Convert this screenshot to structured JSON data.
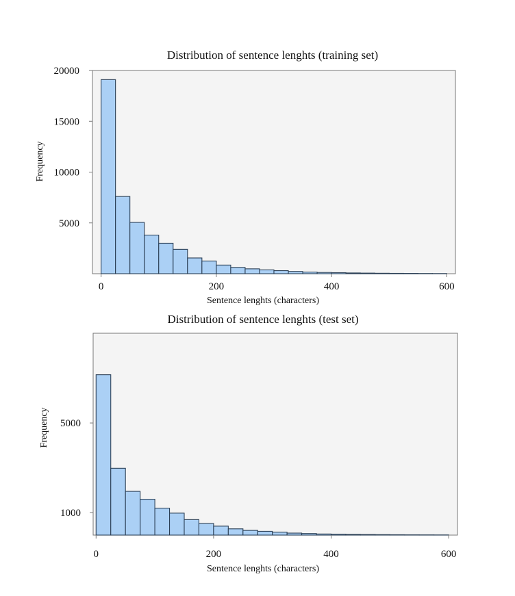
{
  "chart_data": [
    {
      "type": "bar",
      "title": "Distribution of sentence lenghts (training set)",
      "xlabel": "Sentence lenghts (characters)",
      "ylabel": "Frequency",
      "bin_width": 25,
      "xlim": [
        -15,
        615
      ],
      "ylim": [
        0,
        20000
      ],
      "x_ticks": [
        "0",
        "200",
        "400",
        "600"
      ],
      "y_ticks": [
        "5000",
        "10000",
        "15000",
        "20000"
      ],
      "bin_starts": [
        0,
        25,
        50,
        75,
        100,
        125,
        150,
        175,
        200,
        225,
        250,
        275,
        300,
        325,
        350,
        375,
        400,
        425,
        450,
        475,
        500,
        525,
        550,
        575
      ],
      "values": [
        19100,
        7600,
        5050,
        3800,
        3000,
        2400,
        1550,
        1250,
        850,
        620,
        480,
        380,
        300,
        220,
        160,
        120,
        100,
        75,
        60,
        45,
        35,
        28,
        20,
        15
      ]
    },
    {
      "type": "bar",
      "title": "Distribution of sentence lenghts (test set)",
      "xlabel": "Sentence lenghts (characters)",
      "ylabel": "Frequency",
      "bin_width": 25,
      "xlim": [
        -5,
        615
      ],
      "ylim": [
        0,
        9000
      ],
      "x_ticks": [
        "0",
        "200",
        "400",
        "600"
      ],
      "y_ticks": [
        "1000",
        "5000"
      ],
      "bin_starts": [
        0,
        25,
        50,
        75,
        100,
        125,
        150,
        175,
        200,
        225,
        250,
        275,
        300,
        325,
        350,
        375,
        400,
        425,
        450,
        475,
        500,
        525,
        550,
        575
      ],
      "values": [
        7150,
        2980,
        1950,
        1600,
        1200,
        980,
        690,
        520,
        400,
        280,
        210,
        170,
        130,
        90,
        70,
        50,
        40,
        30,
        25,
        20,
        15,
        12,
        10,
        8
      ]
    }
  ]
}
